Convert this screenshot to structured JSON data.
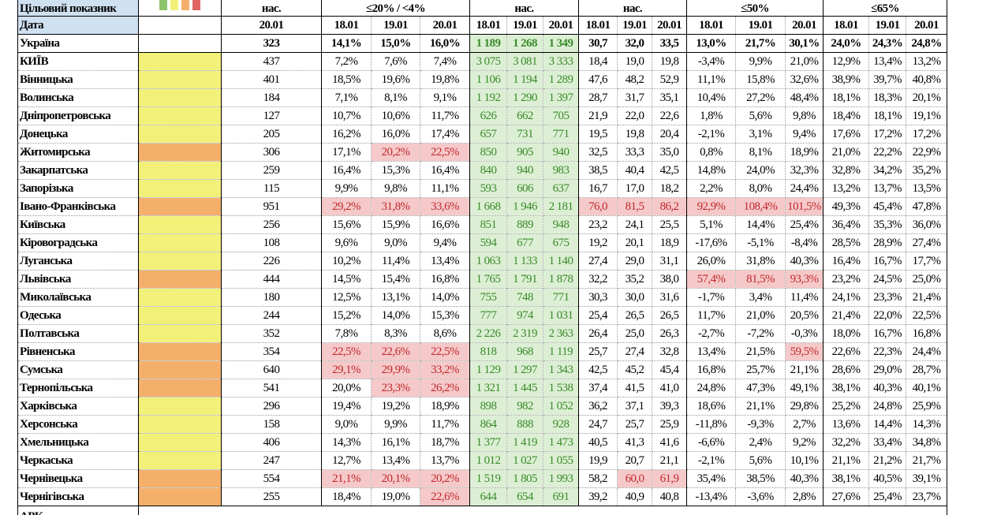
{
  "header": {
    "target_label": "Цільовий показник",
    "date_label": "Дата",
    "legend_colors": [
      "#8cc46a",
      "#f3f07a",
      "#f4b06b",
      "#e06666"
    ],
    "groups": [
      {
        "label": "нас.",
        "dates": [
          "20.01"
        ]
      },
      {
        "label": "≤20% / <4%",
        "dates": [
          "18.01",
          "19.01",
          "20.01"
        ]
      },
      {
        "label": "нас.",
        "dates": [
          "18.01",
          "19.01",
          "20.01"
        ]
      },
      {
        "label": "нас.",
        "dates": [
          "18.01",
          "19.01",
          "20.01"
        ]
      },
      {
        "label": "≤50%",
        "dates": [
          "18.01",
          "19.01",
          "20.01"
        ]
      },
      {
        "label": "≤65%",
        "dates": [
          "18.01",
          "19.01",
          "20.01"
        ]
      }
    ]
  },
  "colors": {
    "yellow": "#f3f07a",
    "orange": "#f4b06b",
    "alert_bg": "#f5c9c9",
    "alert_text": "#c0282d",
    "green_bg": "#dcefd4",
    "green_text": "#3a8a2a"
  },
  "summary": {
    "name": "Україна",
    "pop": "323",
    "values": [
      "14,1%",
      "15,0%",
      "16,0%",
      "1 189",
      "1 268",
      "1 349",
      "30,7",
      "32,0",
      "33,5",
      "13,0%",
      "21,7%",
      "30,1%",
      "24,0%",
      "24,3%",
      "24,8%"
    ]
  },
  "rows": [
    {
      "name": "КИЇВ",
      "status": "yellow",
      "pop": "437",
      "values": [
        "7,2%",
        "7,6%",
        "7,4%",
        "3 075",
        "3 081",
        "3 333",
        "18,4",
        "19,0",
        "19,8",
        "-3,4%",
        "9,9%",
        "21,0%",
        "12,9%",
        "13,4%",
        "13,2%"
      ],
      "alerts": []
    },
    {
      "name": "Вінницька",
      "status": "yellow",
      "pop": "401",
      "values": [
        "18,5%",
        "19,6%",
        "19,8%",
        "1 106",
        "1 194",
        "1 289",
        "47,6",
        "48,2",
        "52,9",
        "11,1%",
        "15,8%",
        "32,6%",
        "38,9%",
        "39,7%",
        "40,8%"
      ],
      "alerts": []
    },
    {
      "name": "Волинська",
      "status": "yellow",
      "pop": "184",
      "values": [
        "7,1%",
        "8,1%",
        "9,1%",
        "1 192",
        "1 290",
        "1 397",
        "28,7",
        "31,7",
        "35,1",
        "10,4%",
        "27,2%",
        "48,4%",
        "18,1%",
        "18,3%",
        "20,1%"
      ],
      "alerts": []
    },
    {
      "name": "Дніпропетровська",
      "status": "yellow",
      "pop": "127",
      "values": [
        "10,7%",
        "10,6%",
        "11,7%",
        "626",
        "662",
        "705",
        "21,9",
        "22,0",
        "22,6",
        "1,8%",
        "5,6%",
        "9,8%",
        "18,4%",
        "18,1%",
        "19,1%"
      ],
      "alerts": []
    },
    {
      "name": "Донецька",
      "status": "yellow",
      "pop": "205",
      "values": [
        "16,2%",
        "16,0%",
        "17,4%",
        "657",
        "731",
        "771",
        "19,5",
        "19,8",
        "20,4",
        "-2,1%",
        "3,1%",
        "9,4%",
        "17,6%",
        "17,2%",
        "17,2%"
      ],
      "alerts": []
    },
    {
      "name": "Житомирська",
      "status": "orange",
      "pop": "306",
      "values": [
        "17,1%",
        "20,2%",
        "22,5%",
        "850",
        "905",
        "940",
        "32,5",
        "33,3",
        "35,0",
        "0,8%",
        "8,1%",
        "18,9%",
        "21,0%",
        "22,2%",
        "22,9%"
      ],
      "alerts": [
        1,
        2
      ]
    },
    {
      "name": "Закарпатська",
      "status": "yellow",
      "pop": "259",
      "values": [
        "16,4%",
        "15,3%",
        "16,4%",
        "840",
        "940",
        "983",
        "38,5",
        "40,4",
        "42,5",
        "14,8%",
        "24,0%",
        "32,3%",
        "32,8%",
        "34,2%",
        "35,2%"
      ],
      "alerts": []
    },
    {
      "name": "Запорізька",
      "status": "yellow",
      "pop": "115",
      "values": [
        "9,9%",
        "9,8%",
        "11,1%",
        "593",
        "606",
        "637",
        "16,7",
        "17,0",
        "18,2",
        "2,2%",
        "8,0%",
        "24,4%",
        "13,2%",
        "13,7%",
        "13,5%"
      ],
      "alerts": []
    },
    {
      "name": "Івано-Франківська",
      "status": "orange",
      "pop": "951",
      "values": [
        "29,2%",
        "31,8%",
        "33,6%",
        "1 668",
        "1 946",
        "2 181",
        "76,0",
        "81,5",
        "86,2",
        "92,9%",
        "108,4%",
        "101,5%",
        "49,3%",
        "45,4%",
        "47,8%"
      ],
      "alerts": [
        0,
        1,
        2,
        6,
        7,
        8,
        9,
        10,
        11
      ]
    },
    {
      "name": "Київська",
      "status": "yellow",
      "pop": "256",
      "values": [
        "15,6%",
        "15,9%",
        "16,6%",
        "851",
        "889",
        "948",
        "23,2",
        "24,1",
        "25,5",
        "5,1%",
        "14,4%",
        "25,4%",
        "36,4%",
        "35,3%",
        "36,0%"
      ],
      "alerts": []
    },
    {
      "name": "Кіровоградська",
      "status": "yellow",
      "pop": "108",
      "values": [
        "9,6%",
        "9,0%",
        "9,4%",
        "594",
        "677",
        "675",
        "19,2",
        "20,1",
        "18,9",
        "-17,6%",
        "-5,1%",
        "-8,4%",
        "28,5%",
        "28,9%",
        "27,4%"
      ],
      "alerts": []
    },
    {
      "name": "Луганська",
      "status": "yellow",
      "pop": "226",
      "values": [
        "10,2%",
        "11,4%",
        "13,4%",
        "1 063",
        "1 133",
        "1 140",
        "27,4",
        "29,0",
        "31,1",
        "26,0%",
        "31,8%",
        "40,3%",
        "16,4%",
        "16,7%",
        "17,7%"
      ],
      "alerts": []
    },
    {
      "name": "Львівська",
      "status": "orange",
      "pop": "444",
      "values": [
        "14,5%",
        "15,4%",
        "16,8%",
        "1 765",
        "1 791",
        "1 878",
        "32,2",
        "35,2",
        "38,0",
        "57,4%",
        "81,5%",
        "93,3%",
        "23,2%",
        "24,5%",
        "25,0%"
      ],
      "alerts": [
        9,
        10,
        11
      ]
    },
    {
      "name": "Миколаївська",
      "status": "yellow",
      "pop": "180",
      "values": [
        "12,5%",
        "13,1%",
        "14,0%",
        "755",
        "748",
        "771",
        "30,3",
        "30,0",
        "31,6",
        "-1,7%",
        "3,4%",
        "11,4%",
        "24,1%",
        "23,3%",
        "21,4%"
      ],
      "alerts": []
    },
    {
      "name": "Одеська",
      "status": "yellow",
      "pop": "244",
      "values": [
        "15,2%",
        "14,0%",
        "15,3%",
        "777",
        "974",
        "1 031",
        "25,4",
        "26,5",
        "26,5",
        "11,7%",
        "21,0%",
        "20,5%",
        "21,4%",
        "22,0%",
        "22,5%"
      ],
      "alerts": []
    },
    {
      "name": "Полтавська",
      "status": "yellow",
      "pop": "352",
      "values": [
        "7,8%",
        "8,3%",
        "8,6%",
        "2 226",
        "2 319",
        "2 363",
        "26,4",
        "25,0",
        "26,3",
        "-2,7%",
        "-7,2%",
        "-0,3%",
        "18,0%",
        "16,7%",
        "16,8%"
      ],
      "alerts": []
    },
    {
      "name": "Рівненська",
      "status": "orange",
      "pop": "354",
      "values": [
        "22,5%",
        "22,6%",
        "22,5%",
        "818",
        "968",
        "1 119",
        "25,7",
        "27,4",
        "32,8",
        "13,4%",
        "21,5%",
        "59,5%",
        "22,6%",
        "22,3%",
        "24,4%"
      ],
      "alerts": [
        0,
        1,
        2,
        11
      ]
    },
    {
      "name": "Сумська",
      "status": "orange",
      "pop": "640",
      "values": [
        "29,1%",
        "29,9%",
        "33,2%",
        "1 129",
        "1 297",
        "1 343",
        "42,5",
        "45,2",
        "45,4",
        "16,8%",
        "25,7%",
        "21,1%",
        "28,6%",
        "29,0%",
        "28,7%"
      ],
      "alerts": [
        0,
        1,
        2
      ]
    },
    {
      "name": "Тернопільська",
      "status": "orange",
      "pop": "541",
      "values": [
        "20,0%",
        "23,3%",
        "26,2%",
        "1 321",
        "1 445",
        "1 538",
        "37,4",
        "41,5",
        "41,0",
        "24,8%",
        "47,3%",
        "49,1%",
        "38,1%",
        "40,3%",
        "40,1%"
      ],
      "alerts": [
        1,
        2
      ]
    },
    {
      "name": "Харківська",
      "status": "yellow",
      "pop": "296",
      "values": [
        "19,4%",
        "19,2%",
        "18,9%",
        "898",
        "982",
        "1 052",
        "36,2",
        "37,1",
        "39,3",
        "18,6%",
        "21,1%",
        "29,8%",
        "25,2%",
        "24,8%",
        "25,9%"
      ],
      "alerts": []
    },
    {
      "name": "Херсонська",
      "status": "yellow",
      "pop": "158",
      "values": [
        "9,0%",
        "9,9%",
        "11,7%",
        "864",
        "888",
        "928",
        "24,7",
        "25,7",
        "25,9",
        "-11,8%",
        "-9,3%",
        "2,7%",
        "13,6%",
        "14,4%",
        "14,3%"
      ],
      "alerts": []
    },
    {
      "name": "Хмельницька",
      "status": "yellow",
      "pop": "406",
      "values": [
        "14,3%",
        "16,1%",
        "18,7%",
        "1 377",
        "1 419",
        "1 473",
        "40,5",
        "41,3",
        "41,6",
        "-6,6%",
        "2,4%",
        "9,2%",
        "32,2%",
        "33,4%",
        "34,8%"
      ],
      "alerts": []
    },
    {
      "name": "Черкаська",
      "status": "yellow",
      "pop": "247",
      "values": [
        "12,7%",
        "13,4%",
        "13,7%",
        "1 012",
        "1 027",
        "1 055",
        "19,9",
        "20,7",
        "21,1",
        "-2,1%",
        "5,6%",
        "10,1%",
        "21,1%",
        "21,2%",
        "21,7%"
      ],
      "alerts": []
    },
    {
      "name": "Чернівецька",
      "status": "orange",
      "pop": "554",
      "values": [
        "21,1%",
        "20,1%",
        "20,2%",
        "1 519",
        "1 805",
        "1 993",
        "58,2",
        "60,0",
        "61,9",
        "35,4%",
        "38,5%",
        "40,3%",
        "38,1%",
        "40,5%",
        "39,1%"
      ],
      "alerts": [
        0,
        1,
        2,
        7,
        8
      ]
    },
    {
      "name": "Чернігівська",
      "status": "orange",
      "pop": "255",
      "values": [
        "18,4%",
        "19,0%",
        "22,6%",
        "644",
        "654",
        "691",
        "39,2",
        "40,9",
        "40,8",
        "-13,4%",
        "-3,6%",
        "2,8%",
        "27,6%",
        "25,4%",
        "23,7%"
      ],
      "alerts": [
        2
      ]
    }
  ],
  "cut_row": {
    "name": "АРК"
  }
}
